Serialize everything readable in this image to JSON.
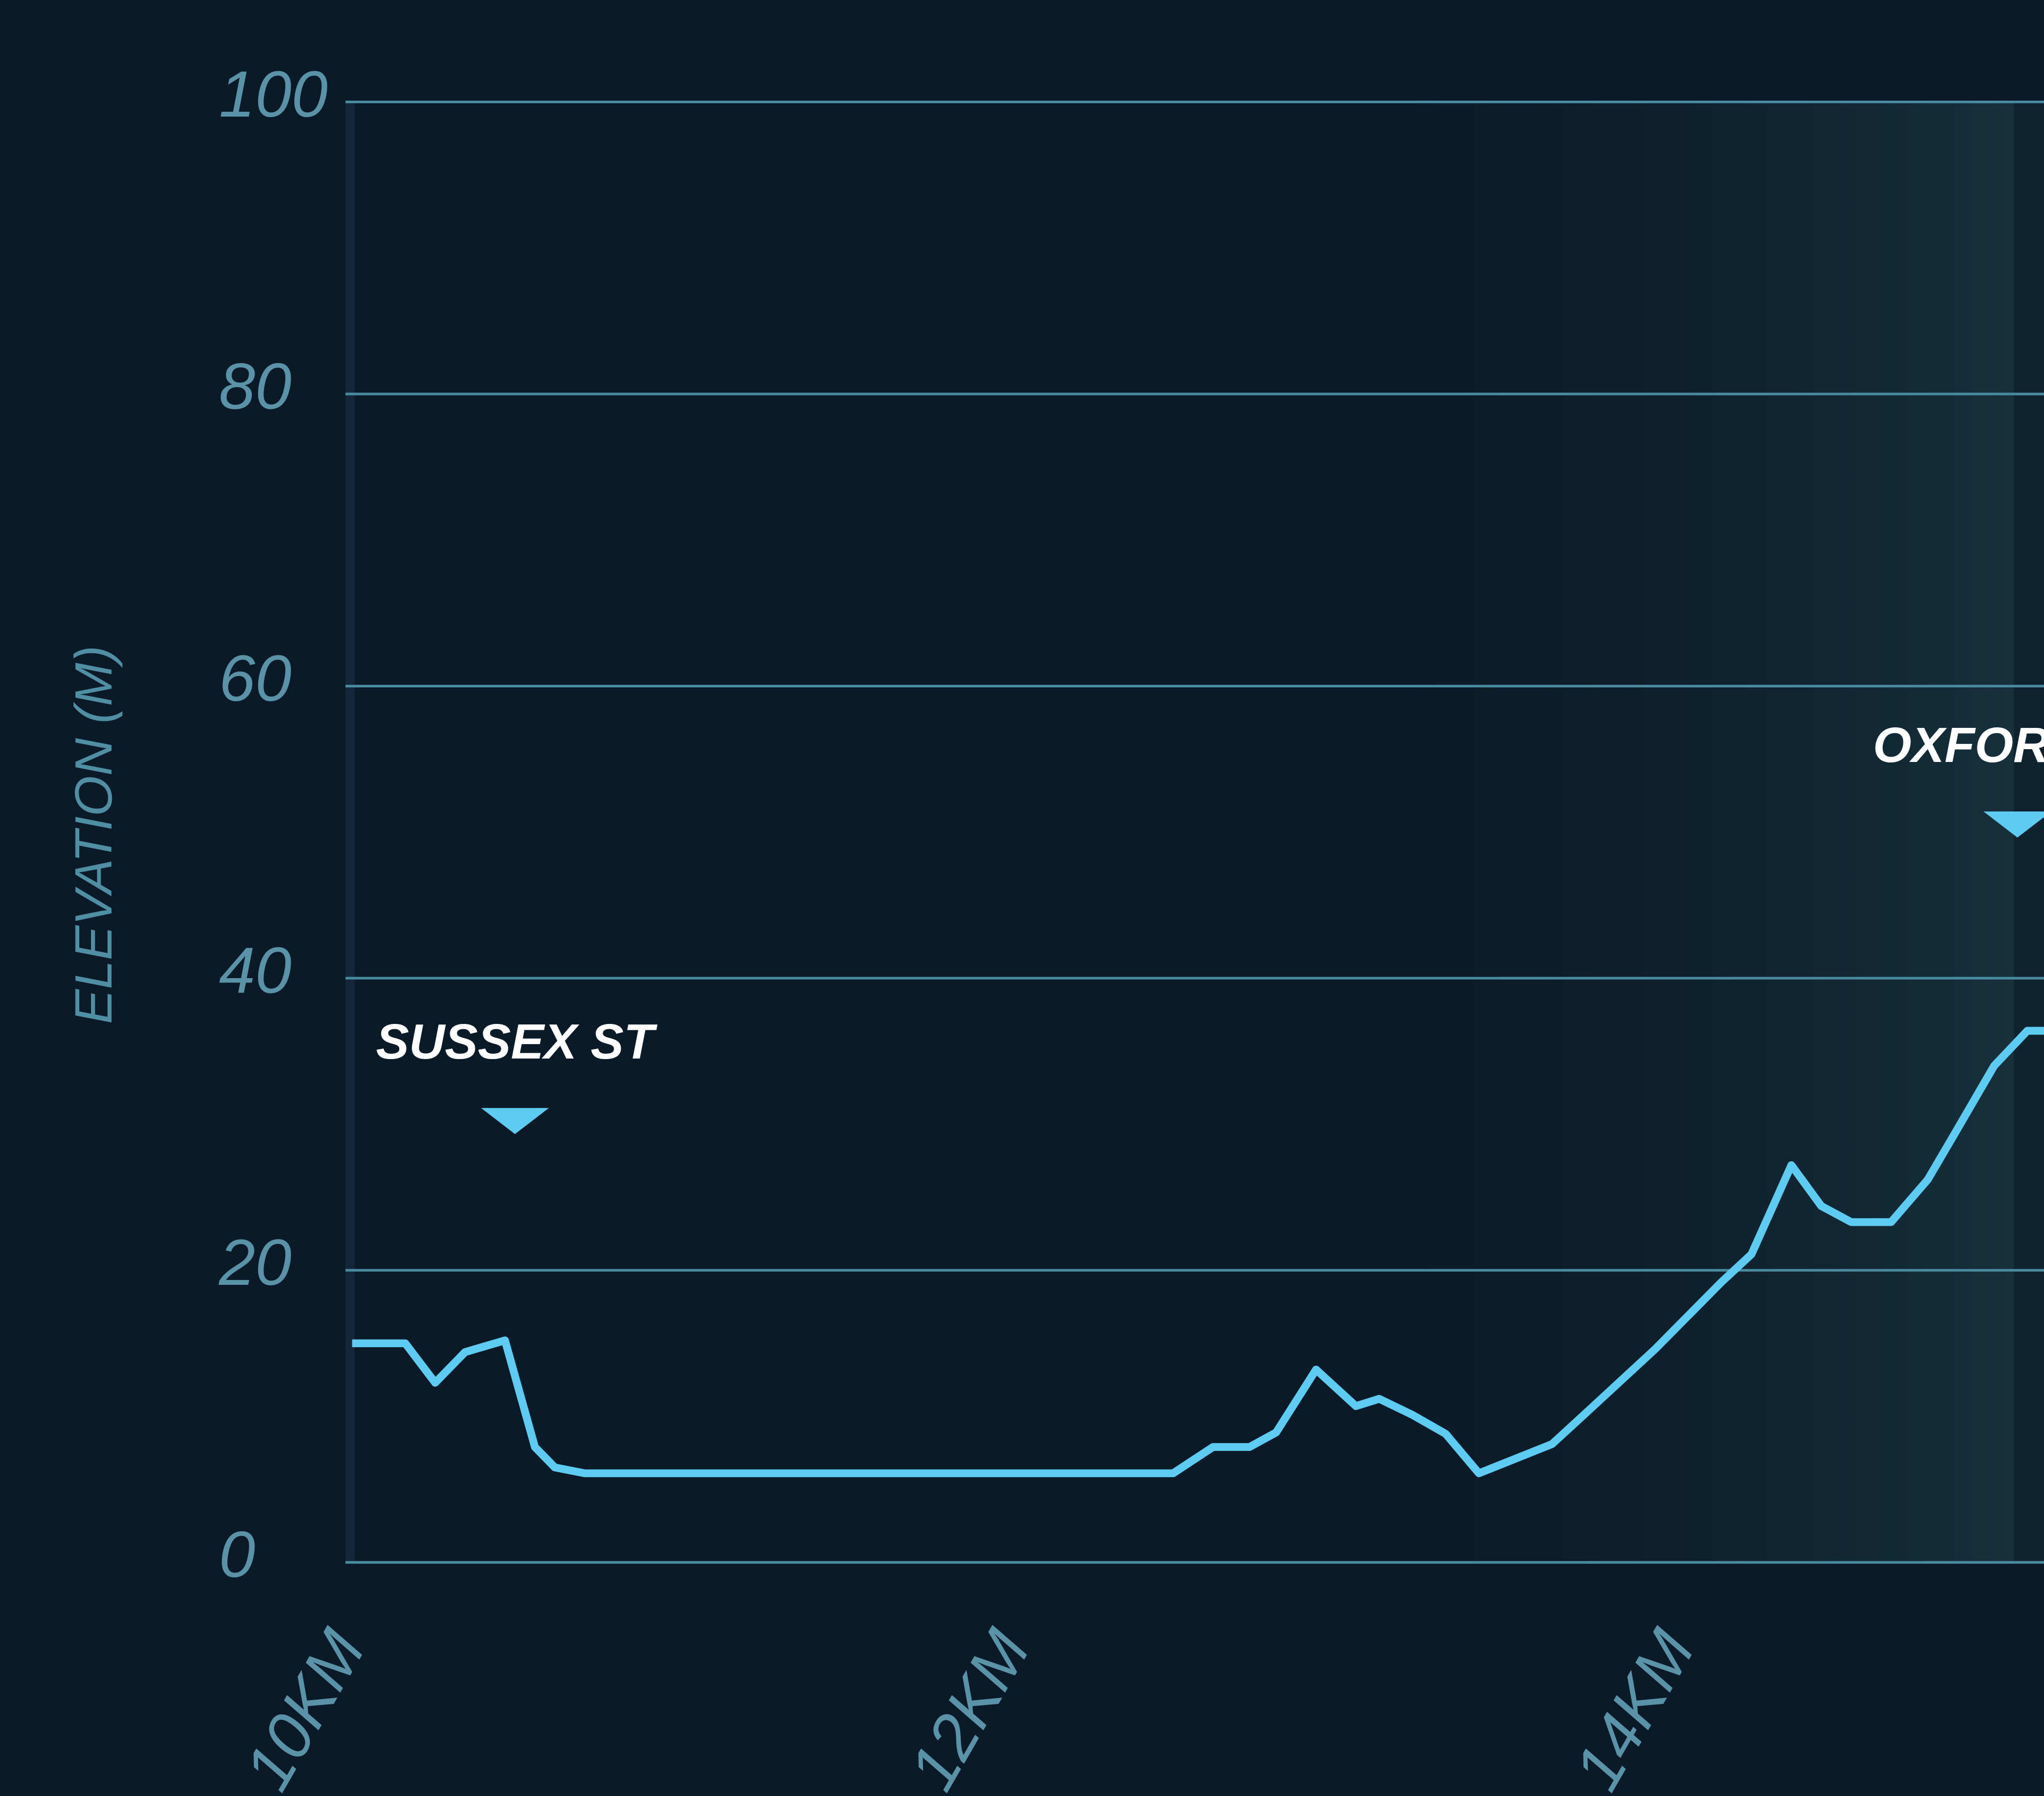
{
  "chart_data": {
    "type": "line",
    "y_label": "ELEVATION (M)",
    "x": [
      10.08,
      10.24,
      10.33,
      10.42,
      10.54,
      10.63,
      10.69,
      10.78,
      12.55,
      12.67,
      12.78,
      12.86,
      12.98,
      13.1,
      13.17,
      13.27,
      13.37,
      13.47,
      13.69,
      13.8,
      14.0,
      14.2,
      14.29,
      14.41,
      14.5,
      14.59,
      14.71,
      14.82,
      14.9,
      15.02,
      15.12,
      15.17
    ],
    "series": [
      {
        "color": "#5ecbf0",
        "values": [
          15,
          15,
          12.3,
          14.4,
          15.2,
          7.9,
          6.5,
          6.1,
          6.1,
          7.9,
          7.9,
          8.9,
          13.2,
          10.7,
          11.2,
          10.1,
          8.8,
          6.1,
          8.1,
          10.4,
          14.6,
          19.2,
          21.1,
          27.2,
          24.4,
          23.3,
          23.3,
          26.2,
          29.3,
          34,
          36.4,
          36.4
        ]
      }
    ],
    "xlim": [
      10.06,
      15.17
    ],
    "ylim": [
      0,
      100
    ],
    "xticks": [
      {
        "value": 10,
        "label": "10KM"
      },
      {
        "value": 12,
        "label": "12KM"
      },
      {
        "value": 14,
        "label": "14KM"
      }
    ],
    "yticks": [
      0,
      20,
      40,
      60,
      80,
      100
    ],
    "grid": true,
    "annotations": [
      {
        "label": "SUSSEX ST",
        "x": 10.57,
        "y": 30.4
      },
      {
        "label": "OXFORD ST",
        "x": 15.09,
        "y": 50.7
      }
    ]
  }
}
